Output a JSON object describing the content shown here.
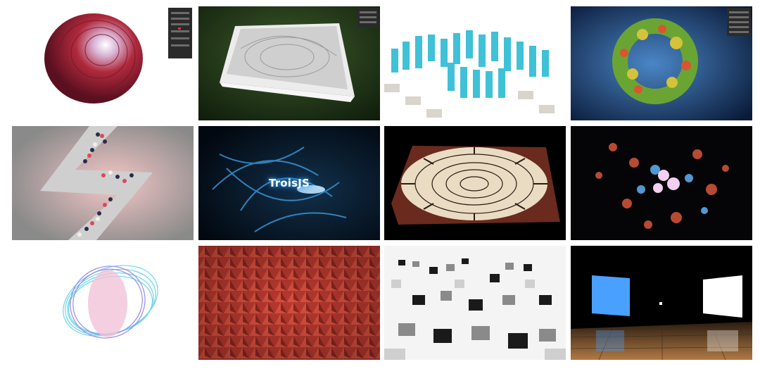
{
  "gallery": {
    "overlay_title": "TroisJS",
    "colors": {
      "background": "#ffffff",
      "red_accent": "#c23a4e",
      "cyan_accent": "#3fc1d8",
      "blue_glow": "#4fb8ff",
      "dark_panel": "#1e1e1e"
    },
    "tiles": [
      {
        "icon": "red-petal-sphere-icon"
      },
      {
        "icon": "fabric-on-grass-icon"
      },
      {
        "icon": "cyan-block-spiral-icon"
      },
      {
        "icon": "green-red-cluster-icon"
      },
      {
        "icon": "zigzag-ball-pit-icon"
      },
      {
        "icon": "glowing-trails-icon"
      },
      {
        "icon": "mandala-cloth-icon"
      },
      {
        "icon": "glowing-polyhedra-icon"
      },
      {
        "icon": "wire-ribbon-icon"
      },
      {
        "icon": "red-cube-wall-icon"
      },
      {
        "icon": "grayscale-cubes-icon"
      },
      {
        "icon": "light-panels-room-icon"
      }
    ]
  }
}
